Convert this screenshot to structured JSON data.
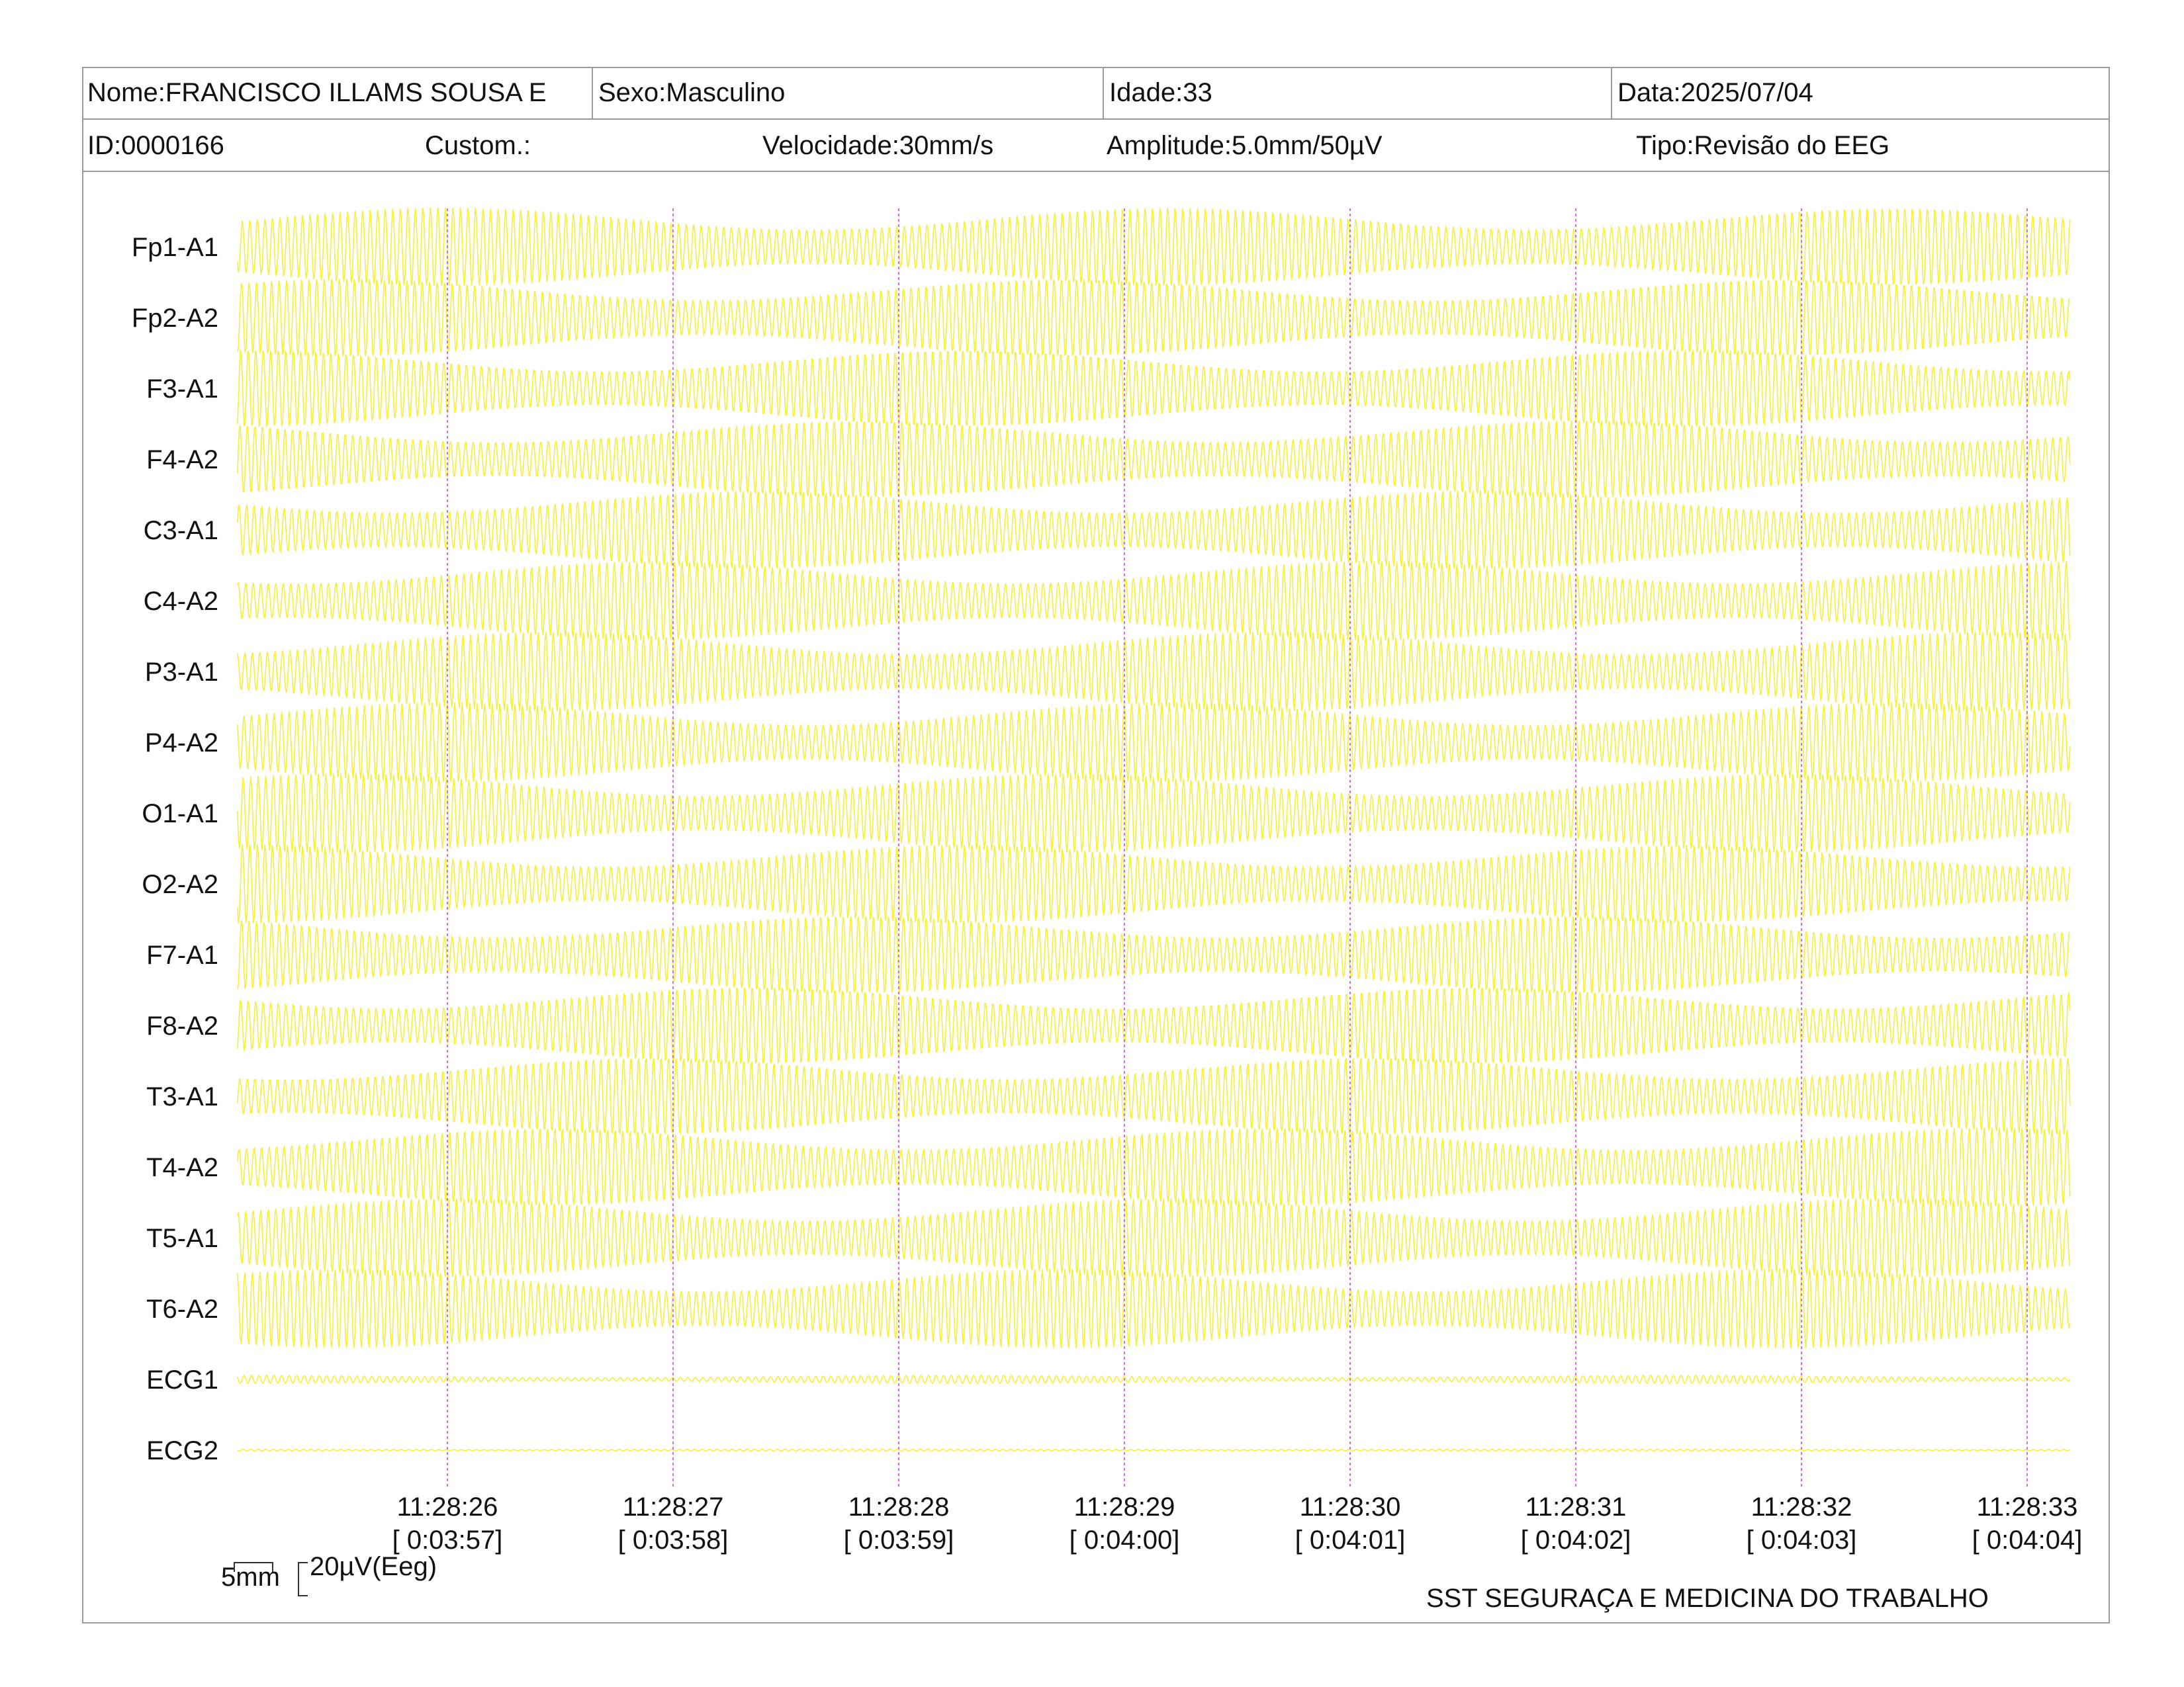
{
  "header": {
    "name": "Nome:FRANCISCO ILLAMS SOUSA E",
    "sex": "Sexo:Masculino",
    "age": "Idade:33",
    "date": "Data:2025/07/04",
    "id": "ID:0000166",
    "custom": "Custom.:",
    "speed": "Velocidade:30mm/s",
    "amplitude": "Amplitude:5.0mm/50µV",
    "type": "Tipo:Revisão do EEG"
  },
  "chart_data": {
    "type": "line",
    "title": "",
    "channels": [
      "Fp1-A1",
      "Fp2-A2",
      "F3-A1",
      "F4-A2",
      "C3-A1",
      "C4-A2",
      "P3-A1",
      "P4-A2",
      "O1-A1",
      "O2-A2",
      "F7-A1",
      "F8-A2",
      "T3-A1",
      "T4-A2",
      "T5-A1",
      "T6-A2",
      "ECG1",
      "ECG2"
    ],
    "time_markers": [
      {
        "clock": "11:28:26",
        "elapsed": "[ 0:03:57]"
      },
      {
        "clock": "11:28:27",
        "elapsed": "[ 0:03:58]"
      },
      {
        "clock": "11:28:28",
        "elapsed": "[ 0:03:59]"
      },
      {
        "clock": "11:28:29",
        "elapsed": "[ 0:04:00]"
      },
      {
        "clock": "11:28:30",
        "elapsed": "[ 0:04:01]"
      },
      {
        "clock": "11:28:31",
        "elapsed": "[ 0:04:02]"
      },
      {
        "clock": "11:28:32",
        "elapsed": "[ 0:04:03]"
      },
      {
        "clock": "11:28:33",
        "elapsed": "[ 0:04:04]"
      }
    ],
    "x_start_seconds_before_first_marker": 0.93,
    "x_end_seconds_after_last_marker": 0.19,
    "signal_frequency_hz": 30,
    "eeg_relative_amplitude": 1.0,
    "ecg1_relative_amplitude": 0.1,
    "ecg2_relative_amplitude": 0.03,
    "trace_color": "#f5f03a",
    "marker_color": "#d070e0",
    "grid": false
  },
  "scale_bar": {
    "time_label": "5mm",
    "amp_label": "20µV(Eeg)"
  },
  "footer": {
    "company": "SST SEGURAÇA E MEDICINA DO TRABALHO"
  }
}
